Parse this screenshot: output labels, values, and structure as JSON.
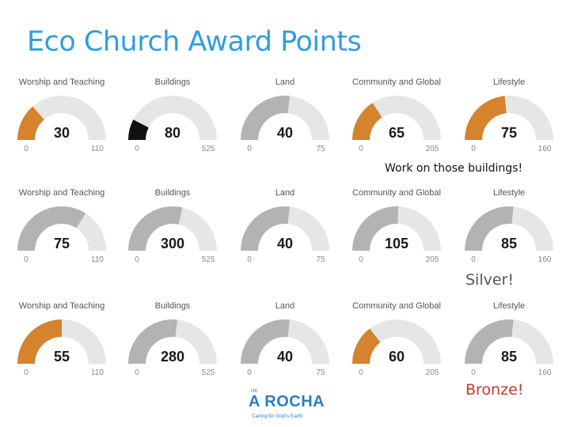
{
  "title": "Eco Church Award Points",
  "colors": {
    "title": "#2f9ee0",
    "track": "#e6e6e6",
    "gray_fill": "#b3b3b3",
    "orange_fill": "#d5832d",
    "black_fill": "#111111",
    "bronze_text": "#c0392b"
  },
  "notes": [
    "Work on those buildings!",
    "Silver!",
    "Bronze!"
  ],
  "logo": {
    "prefix": "UK",
    "name": "A ROCHA",
    "tagline": "Caring for God's Earth"
  },
  "chart_data": [
    {
      "type": "gauge",
      "row": 1,
      "gauges": [
        {
          "title": "Worship and Teaching",
          "value": 30,
          "min": 0,
          "max": 110,
          "color": "orange"
        },
        {
          "title": "Buildings",
          "value": 80,
          "min": 0,
          "max": 525,
          "color": "black"
        },
        {
          "title": "Land",
          "value": 40,
          "min": 0,
          "max": 75,
          "color": "gray"
        },
        {
          "title": "Community and Global",
          "value": 65,
          "min": 0,
          "max": 205,
          "color": "orange"
        },
        {
          "title": "Lifestyle",
          "value": 75,
          "min": 0,
          "max": 160,
          "color": "orange"
        }
      ]
    },
    {
      "type": "gauge",
      "row": 2,
      "gauges": [
        {
          "title": "Worship and Teaching",
          "value": 75,
          "min": 0,
          "max": 110,
          "color": "gray"
        },
        {
          "title": "Buildings",
          "value": 300,
          "min": 0,
          "max": 525,
          "color": "gray"
        },
        {
          "title": "Land",
          "value": 40,
          "min": 0,
          "max": 75,
          "color": "gray"
        },
        {
          "title": "Community and Global",
          "value": 105,
          "min": 0,
          "max": 205,
          "color": "gray"
        },
        {
          "title": "Lifestyle",
          "value": 85,
          "min": 0,
          "max": 160,
          "color": "gray"
        }
      ]
    },
    {
      "type": "gauge",
      "row": 3,
      "gauges": [
        {
          "title": "Worship and Teaching",
          "value": 55,
          "min": 0,
          "max": 110,
          "color": "orange"
        },
        {
          "title": "Buildings",
          "value": 280,
          "min": 0,
          "max": 525,
          "color": "gray"
        },
        {
          "title": "Land",
          "value": 40,
          "min": 0,
          "max": 75,
          "color": "gray"
        },
        {
          "title": "Community and Global",
          "value": 60,
          "min": 0,
          "max": 205,
          "color": "orange"
        },
        {
          "title": "Lifestyle",
          "value": 85,
          "min": 0,
          "max": 160,
          "color": "gray"
        }
      ]
    }
  ]
}
